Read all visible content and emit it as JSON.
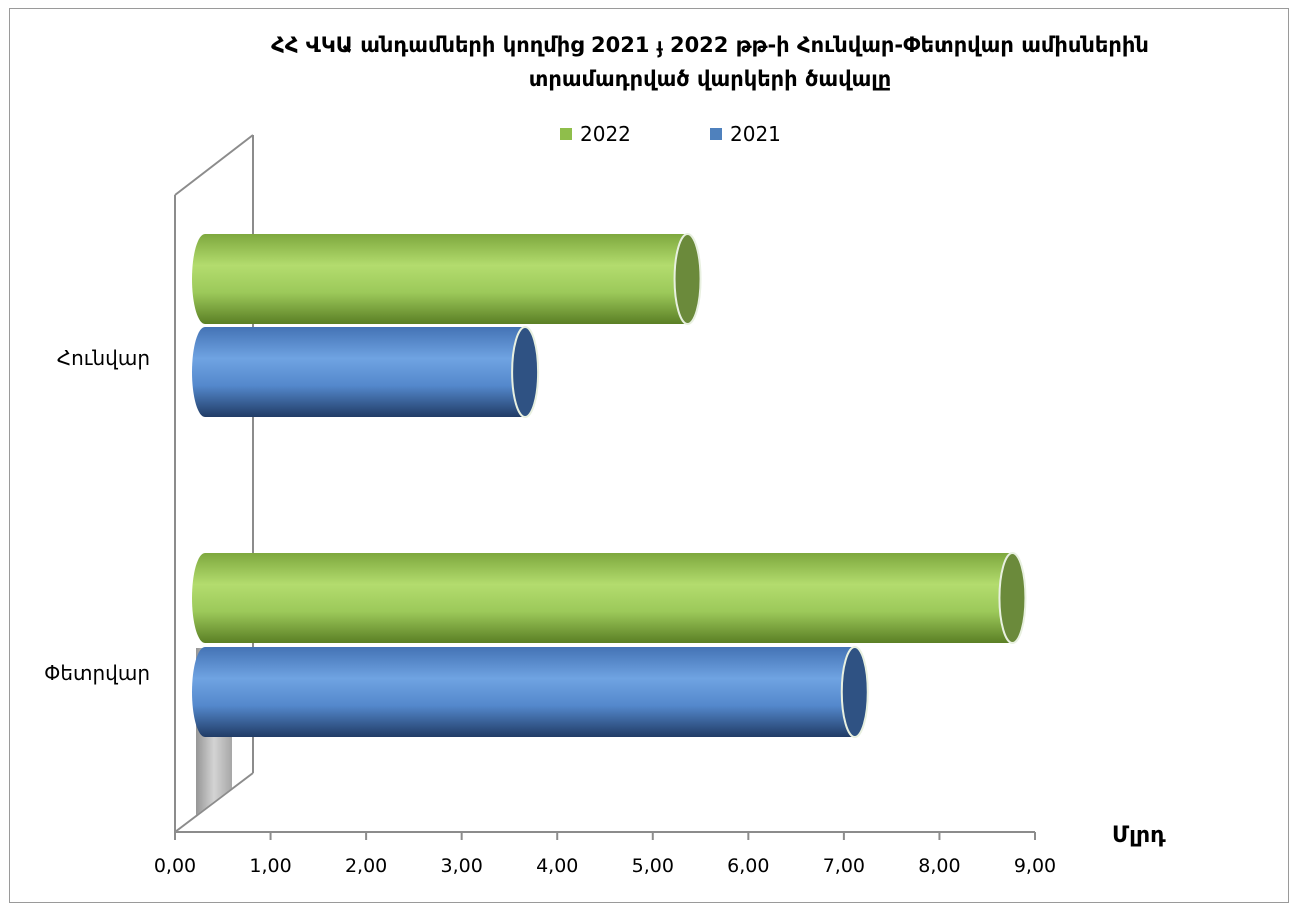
{
  "chart_data": {
    "type": "bar",
    "orientation": "horizontal",
    "style": "3d-cylinder",
    "title_line1": "ՀՀ ՎԿԱ անդամների կողմից 2021 ֈ 2022 թթ-ի Հունվար-Փետրվար  ամիսներին",
    "title_line2": "տրամադրված վարկերի ծավալը",
    "categories": [
      "Հունվար",
      "Փետրվար"
    ],
    "series": [
      {
        "name": "2022",
        "color": "#8fbe4b",
        "values": [
          5.05,
          8.45
        ]
      },
      {
        "name": "2021",
        "color": "#4f81bd",
        "values": [
          3.35,
          6.8
        ]
      }
    ],
    "xlim": [
      0,
      9
    ],
    "x_ticks": [
      "0,00",
      "1,00",
      "2,00",
      "3,00",
      "4,00",
      "5,00",
      "6,00",
      "7,00",
      "8,00",
      "9,00"
    ],
    "xlabel": "Մլրդ",
    "legend_position": "top",
    "grid": false
  }
}
